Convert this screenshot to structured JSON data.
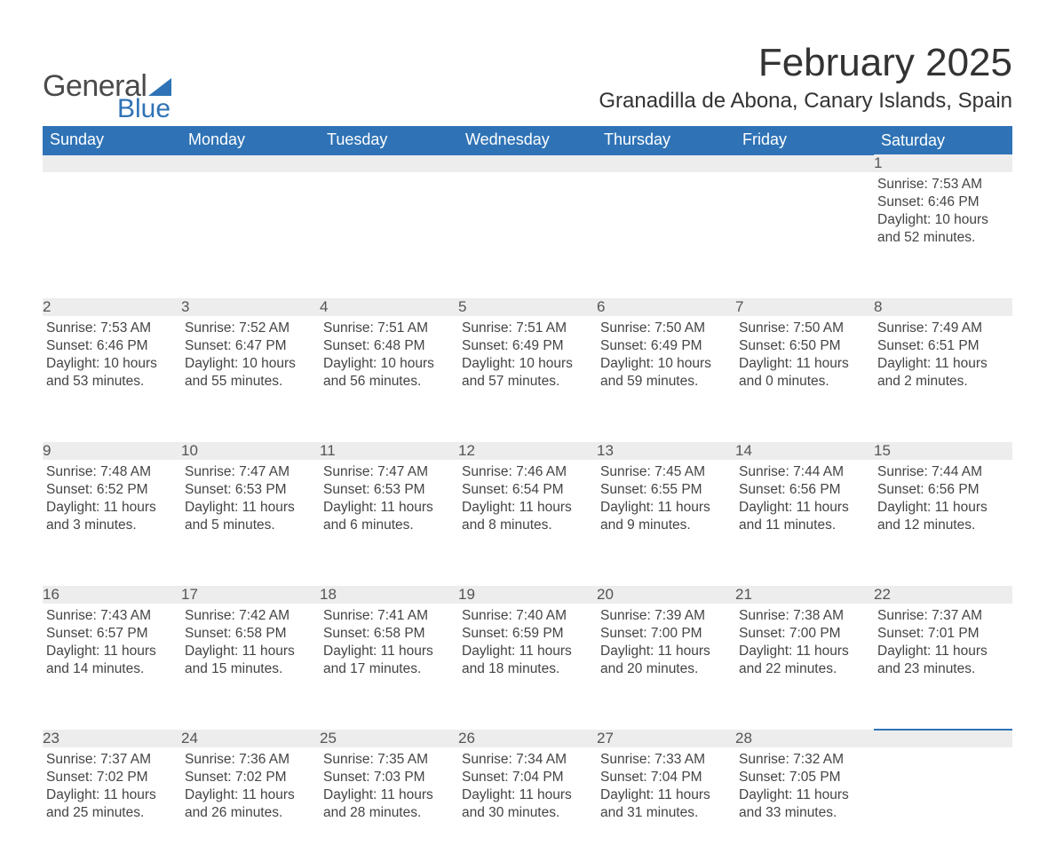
{
  "brand": {
    "text1": "General",
    "text2": "Blue",
    "text1_color": "#4a4a4a",
    "text2_color": "#2f73b6"
  },
  "title": "February 2025",
  "location": "Granadilla de Abona, Canary Islands, Spain",
  "theme": {
    "header_bg": "#2f73b6",
    "header_text": "#ffffff",
    "daynum_bg": "#ededed",
    "daynum_border": "#2f73b6",
    "body_text": "#444444",
    "page_bg": "#ffffff",
    "title_fontsize": 44,
    "location_fontsize": 24,
    "dayheader_fontsize": 18,
    "body_fontsize": 15.5
  },
  "day_headers": [
    "Sunday",
    "Monday",
    "Tuesday",
    "Wednesday",
    "Thursday",
    "Friday",
    "Saturday"
  ],
  "weeks": [
    [
      null,
      null,
      null,
      null,
      null,
      null,
      {
        "n": "1",
        "sr": "Sunrise: 7:53 AM",
        "ss": "Sunset: 6:46 PM",
        "dl": "Daylight: 10 hours and 52 minutes."
      }
    ],
    [
      {
        "n": "2",
        "sr": "Sunrise: 7:53 AM",
        "ss": "Sunset: 6:46 PM",
        "dl": "Daylight: 10 hours and 53 minutes."
      },
      {
        "n": "3",
        "sr": "Sunrise: 7:52 AM",
        "ss": "Sunset: 6:47 PM",
        "dl": "Daylight: 10 hours and 55 minutes."
      },
      {
        "n": "4",
        "sr": "Sunrise: 7:51 AM",
        "ss": "Sunset: 6:48 PM",
        "dl": "Daylight: 10 hours and 56 minutes."
      },
      {
        "n": "5",
        "sr": "Sunrise: 7:51 AM",
        "ss": "Sunset: 6:49 PM",
        "dl": "Daylight: 10 hours and 57 minutes."
      },
      {
        "n": "6",
        "sr": "Sunrise: 7:50 AM",
        "ss": "Sunset: 6:49 PM",
        "dl": "Daylight: 10 hours and 59 minutes."
      },
      {
        "n": "7",
        "sr": "Sunrise: 7:50 AM",
        "ss": "Sunset: 6:50 PM",
        "dl": "Daylight: 11 hours and 0 minutes."
      },
      {
        "n": "8",
        "sr": "Sunrise: 7:49 AM",
        "ss": "Sunset: 6:51 PM",
        "dl": "Daylight: 11 hours and 2 minutes."
      }
    ],
    [
      {
        "n": "9",
        "sr": "Sunrise: 7:48 AM",
        "ss": "Sunset: 6:52 PM",
        "dl": "Daylight: 11 hours and 3 minutes."
      },
      {
        "n": "10",
        "sr": "Sunrise: 7:47 AM",
        "ss": "Sunset: 6:53 PM",
        "dl": "Daylight: 11 hours and 5 minutes."
      },
      {
        "n": "11",
        "sr": "Sunrise: 7:47 AM",
        "ss": "Sunset: 6:53 PM",
        "dl": "Daylight: 11 hours and 6 minutes."
      },
      {
        "n": "12",
        "sr": "Sunrise: 7:46 AM",
        "ss": "Sunset: 6:54 PM",
        "dl": "Daylight: 11 hours and 8 minutes."
      },
      {
        "n": "13",
        "sr": "Sunrise: 7:45 AM",
        "ss": "Sunset: 6:55 PM",
        "dl": "Daylight: 11 hours and 9 minutes."
      },
      {
        "n": "14",
        "sr": "Sunrise: 7:44 AM",
        "ss": "Sunset: 6:56 PM",
        "dl": "Daylight: 11 hours and 11 minutes."
      },
      {
        "n": "15",
        "sr": "Sunrise: 7:44 AM",
        "ss": "Sunset: 6:56 PM",
        "dl": "Daylight: 11 hours and 12 minutes."
      }
    ],
    [
      {
        "n": "16",
        "sr": "Sunrise: 7:43 AM",
        "ss": "Sunset: 6:57 PM",
        "dl": "Daylight: 11 hours and 14 minutes."
      },
      {
        "n": "17",
        "sr": "Sunrise: 7:42 AM",
        "ss": "Sunset: 6:58 PM",
        "dl": "Daylight: 11 hours and 15 minutes."
      },
      {
        "n": "18",
        "sr": "Sunrise: 7:41 AM",
        "ss": "Sunset: 6:58 PM",
        "dl": "Daylight: 11 hours and 17 minutes."
      },
      {
        "n": "19",
        "sr": "Sunrise: 7:40 AM",
        "ss": "Sunset: 6:59 PM",
        "dl": "Daylight: 11 hours and 18 minutes."
      },
      {
        "n": "20",
        "sr": "Sunrise: 7:39 AM",
        "ss": "Sunset: 7:00 PM",
        "dl": "Daylight: 11 hours and 20 minutes."
      },
      {
        "n": "21",
        "sr": "Sunrise: 7:38 AM",
        "ss": "Sunset: 7:00 PM",
        "dl": "Daylight: 11 hours and 22 minutes."
      },
      {
        "n": "22",
        "sr": "Sunrise: 7:37 AM",
        "ss": "Sunset: 7:01 PM",
        "dl": "Daylight: 11 hours and 23 minutes."
      }
    ],
    [
      {
        "n": "23",
        "sr": "Sunrise: 7:37 AM",
        "ss": "Sunset: 7:02 PM",
        "dl": "Daylight: 11 hours and 25 minutes."
      },
      {
        "n": "24",
        "sr": "Sunrise: 7:36 AM",
        "ss": "Sunset: 7:02 PM",
        "dl": "Daylight: 11 hours and 26 minutes."
      },
      {
        "n": "25",
        "sr": "Sunrise: 7:35 AM",
        "ss": "Sunset: 7:03 PM",
        "dl": "Daylight: 11 hours and 28 minutes."
      },
      {
        "n": "26",
        "sr": "Sunrise: 7:34 AM",
        "ss": "Sunset: 7:04 PM",
        "dl": "Daylight: 11 hours and 30 minutes."
      },
      {
        "n": "27",
        "sr": "Sunrise: 7:33 AM",
        "ss": "Sunset: 7:04 PM",
        "dl": "Daylight: 11 hours and 31 minutes."
      },
      {
        "n": "28",
        "sr": "Sunrise: 7:32 AM",
        "ss": "Sunset: 7:05 PM",
        "dl": "Daylight: 11 hours and 33 minutes."
      },
      null
    ]
  ]
}
